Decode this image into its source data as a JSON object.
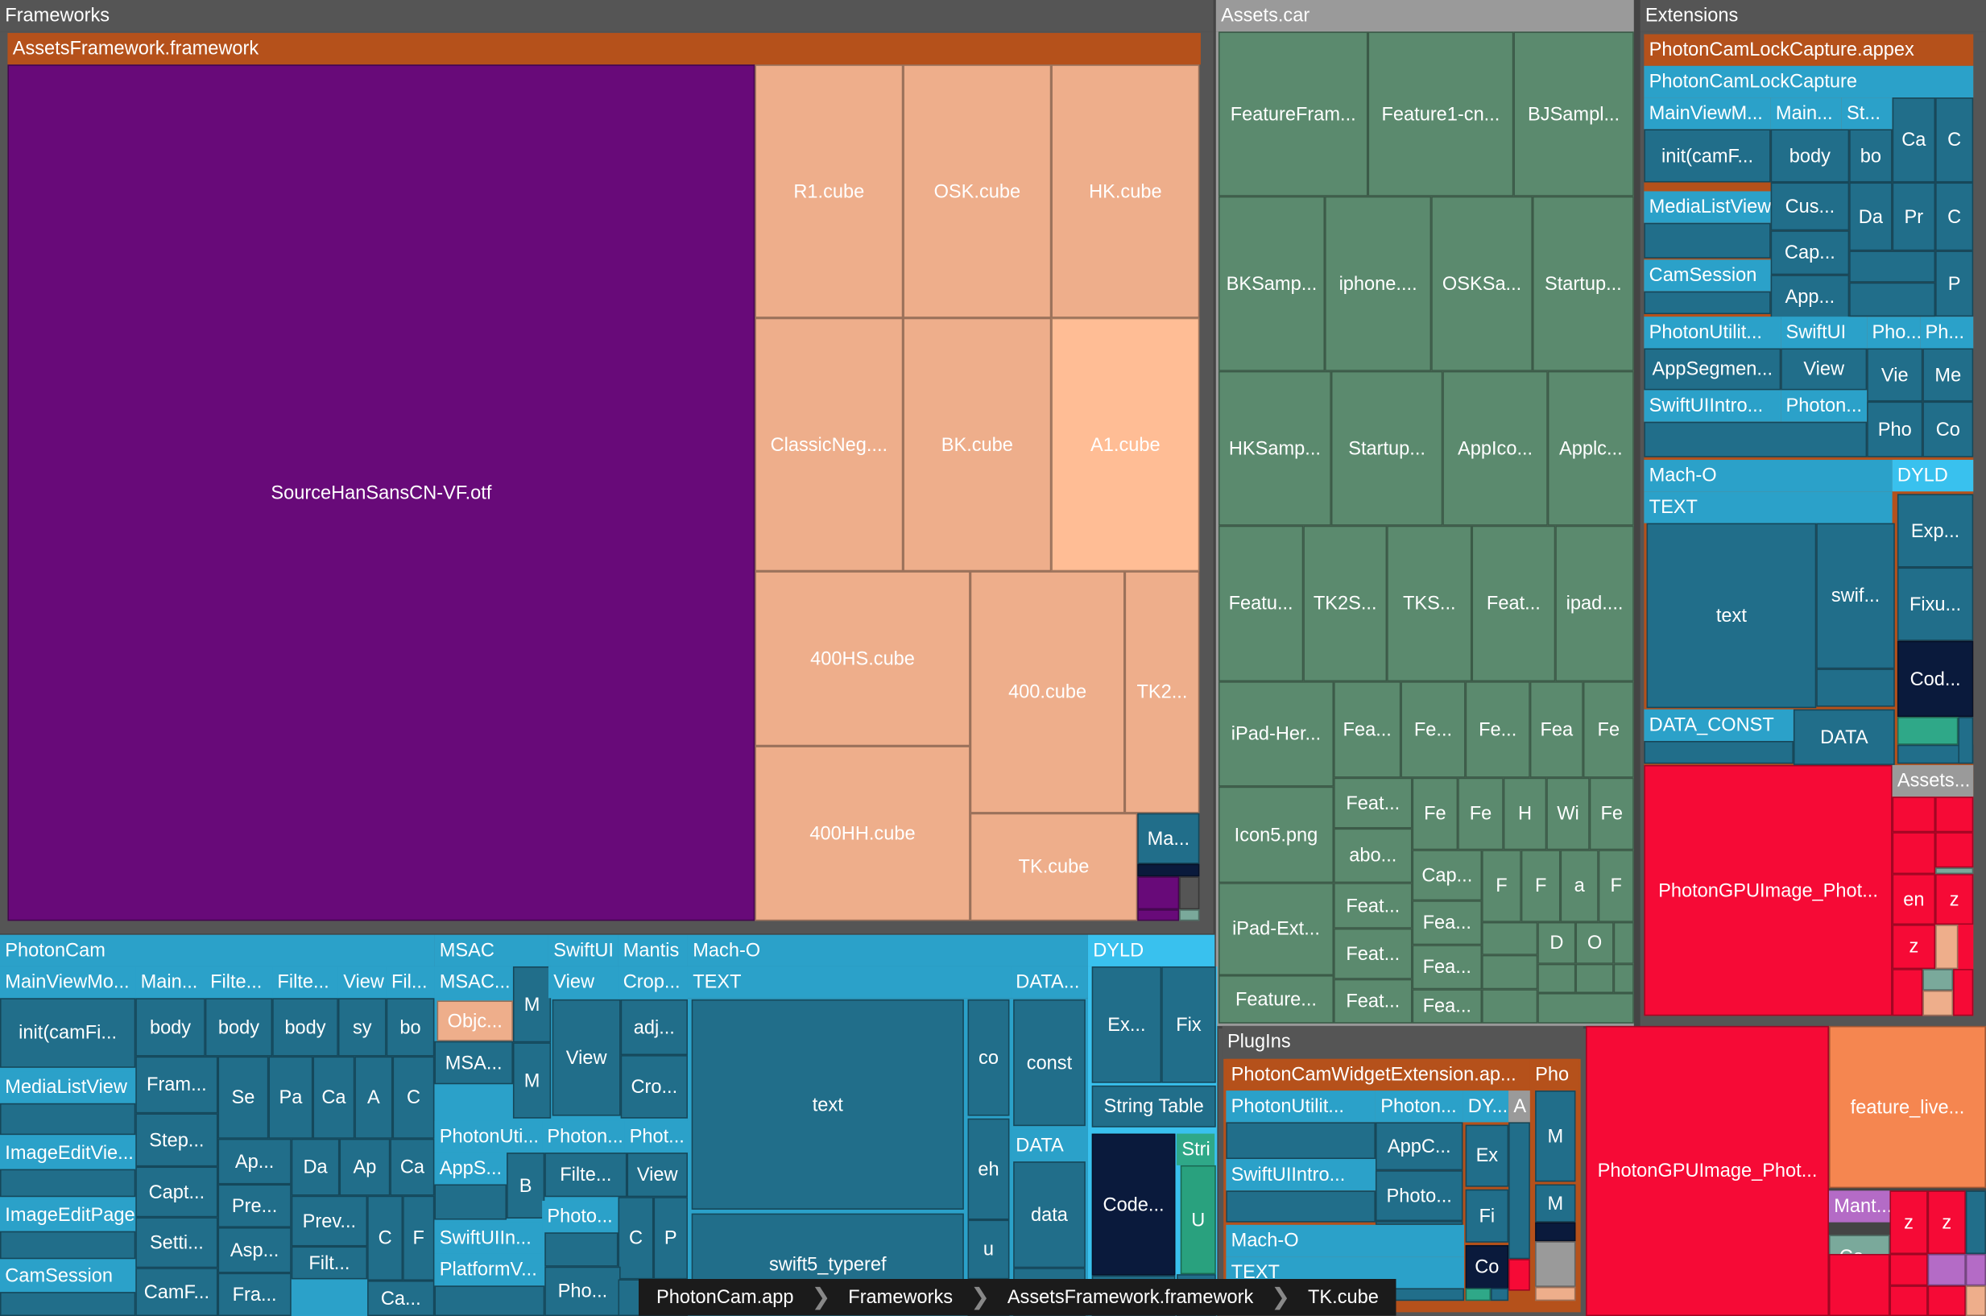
{
  "breadcrumb": [
    "PhotonCam.app",
    "Frameworks",
    "AssetsFramework.framework",
    "TK.cube"
  ],
  "chart_data": {
    "type": "treemap",
    "colors": {
      "framework_header": "#b5511b",
      "font": "#680a79",
      "cube": "#eeae8b",
      "cube_light": "#ffbd95",
      "assets": "#5b8a6e",
      "code": "#216e8a",
      "code_light": "#2ba1c9",
      "dyld": "#39c1ee",
      "image": "#f60a36",
      "orange": "#f58650"
    },
    "groups": [
      {
        "name": "Frameworks"
      },
      {
        "name": "Assets.car"
      },
      {
        "name": "Extensions"
      },
      {
        "name": "PhotonCam"
      },
      {
        "name": "MSAC"
      },
      {
        "name": "SwiftUI"
      },
      {
        "name": "Mantis"
      },
      {
        "name": "Mach-O"
      },
      {
        "name": "DYLD"
      },
      {
        "name": "PlugIns"
      }
    ],
    "tiles": [
      {
        "label": "AssetsFramework.framework"
      },
      {
        "label": "SourceHanSansCN-VF.otf"
      },
      {
        "label": "R1.cube"
      },
      {
        "label": "OSK.cube"
      },
      {
        "label": "HK.cube"
      },
      {
        "label": "ClassicNeg...."
      },
      {
        "label": "BK.cube"
      },
      {
        "label": "A1.cube"
      },
      {
        "label": "400HS.cube"
      },
      {
        "label": "400.cube"
      },
      {
        "label": "TK2..."
      },
      {
        "label": "400HH.cube"
      },
      {
        "label": "TK.cube"
      },
      {
        "label": "Ma..."
      },
      {
        "label": "FeatureFram..."
      },
      {
        "label": "Feature1-cn..."
      },
      {
        "label": "BJSampl..."
      },
      {
        "label": "BKSamp..."
      },
      {
        "label": "iphone...."
      },
      {
        "label": "OSKSa..."
      },
      {
        "label": "Startup..."
      },
      {
        "label": "HKSamp..."
      },
      {
        "label": "Startup..."
      },
      {
        "label": "AppIco..."
      },
      {
        "label": "Applc..."
      },
      {
        "label": "Featu..."
      },
      {
        "label": "TK2S..."
      },
      {
        "label": "TKS..."
      },
      {
        "label": "Feat..."
      },
      {
        "label": "ipad...."
      },
      {
        "label": "iPad-Her..."
      },
      {
        "label": "Fea..."
      },
      {
        "label": "Fe..."
      },
      {
        "label": "Fe..."
      },
      {
        "label": "Fea"
      },
      {
        "label": "Fe"
      },
      {
        "label": "Icon5.png"
      },
      {
        "label": "Feat..."
      },
      {
        "label": "Fe"
      },
      {
        "label": "Fe"
      },
      {
        "label": "H"
      },
      {
        "label": "Wi"
      },
      {
        "label": "Fe"
      },
      {
        "label": "abo..."
      },
      {
        "label": "Cap..."
      },
      {
        "label": "F"
      },
      {
        "label": "F"
      },
      {
        "label": "a"
      },
      {
        "label": "F"
      },
      {
        "label": "iPad-Ext..."
      },
      {
        "label": "Feat..."
      },
      {
        "label": "Fea..."
      },
      {
        "label": "Feat..."
      },
      {
        "label": "Fea..."
      },
      {
        "label": "D"
      },
      {
        "label": "O"
      },
      {
        "label": "Feature..."
      },
      {
        "label": "Feat..."
      },
      {
        "label": "Fea..."
      },
      {
        "label": "PhotonCamLockCapture.appex"
      },
      {
        "label": "PhotonCamLockCapture"
      },
      {
        "label": "MainViewM..."
      },
      {
        "label": "Main..."
      },
      {
        "label": "St..."
      },
      {
        "label": "Ca"
      },
      {
        "label": "C"
      },
      {
        "label": "init(camF..."
      },
      {
        "label": "body"
      },
      {
        "label": "bo"
      },
      {
        "label": "MediaListView"
      },
      {
        "label": "Cus..."
      },
      {
        "label": "Da"
      },
      {
        "label": "Pr"
      },
      {
        "label": "C"
      },
      {
        "label": "Cap..."
      },
      {
        "label": "CamSession"
      },
      {
        "label": "App..."
      },
      {
        "label": "P"
      },
      {
        "label": "PhotonUtilit..."
      },
      {
        "label": "SwiftUI"
      },
      {
        "label": "Pho..."
      },
      {
        "label": "Ph..."
      },
      {
        "label": "AppSegmen..."
      },
      {
        "label": "View"
      },
      {
        "label": "Vie"
      },
      {
        "label": "Me"
      },
      {
        "label": "SwiftUIIntro..."
      },
      {
        "label": "Photon..."
      },
      {
        "label": "Pho"
      },
      {
        "label": "Co"
      },
      {
        "label": "Mach-O"
      },
      {
        "label": "DYLD"
      },
      {
        "label": "TEXT"
      },
      {
        "label": "Exp..."
      },
      {
        "label": "text"
      },
      {
        "label": "swif..."
      },
      {
        "label": "Fixu..."
      },
      {
        "label": "Cod..."
      },
      {
        "label": "DATA_CONST"
      },
      {
        "label": "DATA"
      },
      {
        "label": "PhotonGPUImage_Phot..."
      },
      {
        "label": "Assets..."
      },
      {
        "label": "en"
      },
      {
        "label": "z"
      },
      {
        "label": "z"
      },
      {
        "label": "MainViewMo..."
      },
      {
        "label": "Main..."
      },
      {
        "label": "Filte..."
      },
      {
        "label": "Filte..."
      },
      {
        "label": "View"
      },
      {
        "label": "Fil..."
      },
      {
        "label": "init(camFi..."
      },
      {
        "label": "body"
      },
      {
        "label": "body"
      },
      {
        "label": "body"
      },
      {
        "label": "sy"
      },
      {
        "label": "bo"
      },
      {
        "label": "MediaListView"
      },
      {
        "label": "Fram..."
      },
      {
        "label": "Se"
      },
      {
        "label": "Pa"
      },
      {
        "label": "Ca"
      },
      {
        "label": "A"
      },
      {
        "label": "C"
      },
      {
        "label": "ImageEditVie..."
      },
      {
        "label": "Step..."
      },
      {
        "label": "Ap..."
      },
      {
        "label": "Da"
      },
      {
        "label": "Ap"
      },
      {
        "label": "Ca"
      },
      {
        "label": "ImageEditPage"
      },
      {
        "label": "Capt..."
      },
      {
        "label": "Pre..."
      },
      {
        "label": "Prev..."
      },
      {
        "label": "C"
      },
      {
        "label": "F"
      },
      {
        "label": "CamSession"
      },
      {
        "label": "Setti..."
      },
      {
        "label": "Asp..."
      },
      {
        "label": "Filt..."
      },
      {
        "label": "CamF..."
      },
      {
        "label": "Fra..."
      },
      {
        "label": "Ca..."
      },
      {
        "label": "MSAC..."
      },
      {
        "label": "M"
      },
      {
        "label": "Objc..."
      },
      {
        "label": "MSA..."
      },
      {
        "label": "M"
      },
      {
        "label": "View"
      },
      {
        "label": "Crop..."
      },
      {
        "label": "View"
      },
      {
        "label": "adj..."
      },
      {
        "label": "Cro..."
      },
      {
        "label": "PhotonUti..."
      },
      {
        "label": "Photon..."
      },
      {
        "label": "Phot..."
      },
      {
        "label": "AppS..."
      },
      {
        "label": "B"
      },
      {
        "label": "Filte..."
      },
      {
        "label": "View"
      },
      {
        "label": "Photo..."
      },
      {
        "label": "SwiftUIIn..."
      },
      {
        "label": "C"
      },
      {
        "label": "P"
      },
      {
        "label": "PlatformV..."
      },
      {
        "label": "Pho..."
      },
      {
        "label": "TEXT"
      },
      {
        "label": "DATA..."
      },
      {
        "label": "text"
      },
      {
        "label": "co"
      },
      {
        "label": "const"
      },
      {
        "label": "eh"
      },
      {
        "label": "DATA"
      },
      {
        "label": "data"
      },
      {
        "label": "swift5_typeref"
      },
      {
        "label": "u"
      },
      {
        "label": "Ex..."
      },
      {
        "label": "Fix"
      },
      {
        "label": "String Table"
      },
      {
        "label": "Code..."
      },
      {
        "label": "Stri"
      },
      {
        "label": "U"
      },
      {
        "label": "PhotonCamWidgetExtension.ap..."
      },
      {
        "label": "Pho"
      },
      {
        "label": "PhotonUtilit..."
      },
      {
        "label": "Photon..."
      },
      {
        "label": "DY..."
      },
      {
        "label": "A"
      },
      {
        "label": "AppC..."
      },
      {
        "label": "Ex"
      },
      {
        "label": "M"
      },
      {
        "label": "SwiftUIIntro..."
      },
      {
        "label": "Photo..."
      },
      {
        "label": "Fi"
      },
      {
        "label": "M"
      },
      {
        "label": "Mach-O"
      },
      {
        "label": "TEXT"
      },
      {
        "label": "Co"
      },
      {
        "label": "PhotonGPUImage_Phot..."
      },
      {
        "label": "feature_live..."
      },
      {
        "label": "Mant..."
      },
      {
        "label": "z"
      },
      {
        "label": "z"
      },
      {
        "label": "Co..."
      }
    ]
  }
}
